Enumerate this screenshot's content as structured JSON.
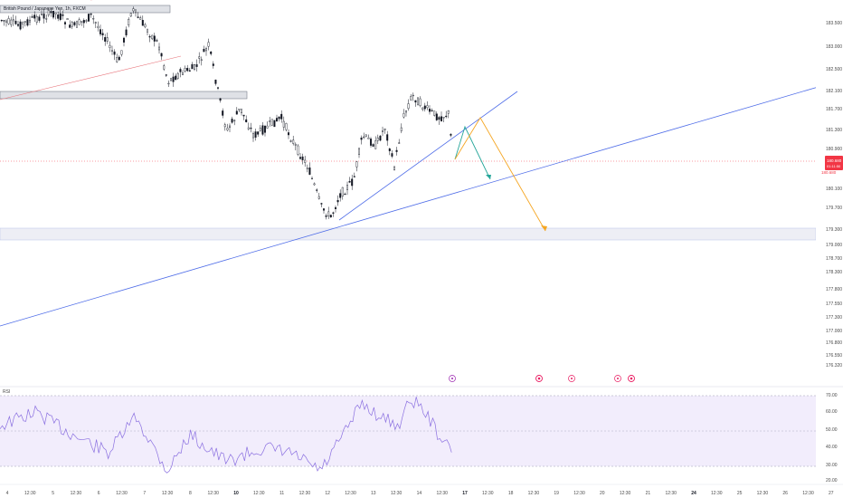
{
  "symbol": {
    "title": "British Pound / Japanese Yen, 1h, FXCM"
  },
  "price_axis": {
    "labels": [
      "183.500",
      "183.000",
      "182.500",
      "182.100",
      "181.700",
      "181.300",
      "180.900",
      "180.100",
      "179.700",
      "179.300",
      "179.000",
      "178.700",
      "178.300",
      "177.800",
      "177.550",
      "177.300",
      "177.000",
      "176.800",
      "176.550",
      "176.320"
    ],
    "current_price": "180.680",
    "current_countdown": "01:11:50",
    "current_sub": "180.680"
  },
  "rsi_panel": {
    "label": "RSI",
    "axis_labels": [
      "70.00",
      "60.00",
      "50.00",
      "40.00",
      "30.00",
      "20.00"
    ]
  },
  "time_axis": {
    "labels": [
      "4",
      "12:30",
      "5",
      "12:30",
      "6",
      "12:30",
      "7",
      "12:30",
      "8",
      "12:30",
      "10",
      "12:30",
      "11",
      "12:30",
      "12",
      "12:30",
      "13",
      "12:30",
      "14",
      "12:30",
      "17",
      "12:30",
      "18",
      "12:30",
      "19",
      "12:30",
      "20",
      "12:30",
      "21",
      "12:30",
      "24",
      "12:30",
      "25",
      "12:30",
      "26",
      "12:30",
      "27"
    ]
  },
  "event_markers": [
    "flag-event",
    "flag-event",
    "calendar-event",
    "flag-event",
    "flag-event",
    "calendar-event"
  ],
  "colors": {
    "trendline": "#4f6de8",
    "resistance_line": "#e8737a",
    "green_projection": "#26a69a",
    "orange_projection": "#f5a623",
    "zone_fill": "#d1d4dc",
    "rsi_fill": "#ede7fb",
    "rsi_line": "#8a6fe0",
    "price_tag": "#f23645"
  }
}
